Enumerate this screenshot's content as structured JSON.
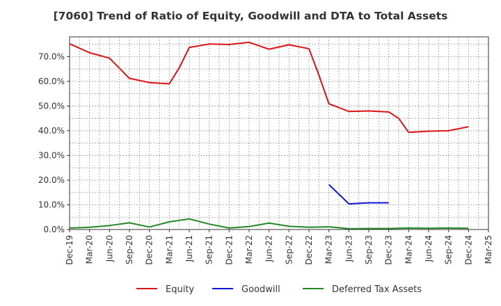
{
  "chart_data": {
    "type": "line",
    "title": "[7060]  Trend of Ratio of Equity, Goodwill and DTA to Total Assets",
    "xlabel": "",
    "ylabel": "",
    "x": [
      "Dec-19",
      "Jan-20",
      "Mar-20",
      "Apr-20",
      "Jun-20",
      "Jul-20",
      "Sep-20",
      "Oct-20",
      "Dec-20",
      "Jan-21",
      "Mar-21",
      "Apr-21",
      "Jun-21",
      "Jul-21",
      "Sep-21",
      "Oct-21",
      "Dec-21",
      "Jan-22",
      "Mar-22",
      "Apr-22",
      "Jun-22",
      "Jul-22",
      "Sep-22",
      "Oct-22",
      "Dec-22",
      "Jan-23",
      "Mar-23",
      "Apr-23",
      "Jun-23",
      "Jul-23",
      "Sep-23",
      "Oct-23",
      "Dec-23",
      "Jan-24",
      "Mar-24",
      "Apr-24",
      "Jun-24",
      "Jul-24",
      "Sep-24",
      "Oct-24",
      "Dec-24",
      "Jan-25",
      "Mar-25"
    ],
    "x_tick_labels": [
      "Dec-19",
      "Mar-20",
      "Jun-20",
      "Sep-20",
      "Dec-20",
      "Mar-21",
      "Jun-21",
      "Sep-21",
      "Dec-21",
      "Mar-22",
      "Jun-22",
      "Sep-22",
      "Dec-22",
      "Mar-23",
      "Jun-23",
      "Sep-23",
      "Dec-23",
      "Mar-24",
      "Jun-24",
      "Sep-24",
      "Dec-24",
      "Mar-25"
    ],
    "y_tick_labels": [
      "0.0%",
      "10.0%",
      "20.0%",
      "30.0%",
      "40.0%",
      "50.0%",
      "60.0%",
      "70.0%"
    ],
    "ylim": [
      0,
      78
    ],
    "grid": true,
    "legend_position": "bottom",
    "series": [
      {
        "name": "Equity",
        "color": "#dd1111",
        "points": [
          [
            "Dec-19",
            75.2
          ],
          [
            "Mar-20",
            71.6
          ],
          [
            "Jun-20",
            69.4
          ],
          [
            "Sep-20",
            61.2
          ],
          [
            "Dec-20",
            59.5
          ],
          [
            "Mar-21",
            59.0
          ],
          [
            "Apr-21",
            65.5
          ],
          [
            "Jun-21",
            73.7
          ],
          [
            "Sep-21",
            75.1
          ],
          [
            "Dec-21",
            74.9
          ],
          [
            "Mar-22",
            75.8
          ],
          [
            "Jun-22",
            73.0
          ],
          [
            "Sep-22",
            74.8
          ],
          [
            "Dec-22",
            73.2
          ],
          [
            "Jan-23",
            62.5
          ],
          [
            "Mar-23",
            50.9
          ],
          [
            "Jun-23",
            47.8
          ],
          [
            "Sep-23",
            48.0
          ],
          [
            "Dec-23",
            47.6
          ],
          [
            "Jan-24",
            45.0
          ],
          [
            "Mar-24",
            39.3
          ],
          [
            "Jun-24",
            39.8
          ],
          [
            "Sep-24",
            40.0
          ],
          [
            "Dec-24",
            41.6
          ]
        ]
      },
      {
        "name": "Goodwill",
        "color": "#1111dd",
        "points": [
          [
            "Mar-23",
            18.2
          ],
          [
            "Jun-23",
            10.4
          ],
          [
            "Sep-23",
            10.8
          ],
          [
            "Dec-23",
            10.8
          ]
        ]
      },
      {
        "name": "Deferred Tax Assets",
        "color": "#228822",
        "points": [
          [
            "Dec-19",
            0.6
          ],
          [
            "Mar-20",
            0.9
          ],
          [
            "Jun-20",
            1.6
          ],
          [
            "Sep-20",
            2.7
          ],
          [
            "Dec-20",
            1.0
          ],
          [
            "Mar-21",
            3.1
          ],
          [
            "Jun-21",
            4.3
          ],
          [
            "Sep-21",
            2.2
          ],
          [
            "Dec-21",
            0.6
          ],
          [
            "Mar-22",
            1.2
          ],
          [
            "Jun-22",
            2.6
          ],
          [
            "Sep-22",
            1.3
          ],
          [
            "Dec-22",
            0.9
          ],
          [
            "Mar-23",
            1.1
          ],
          [
            "Jun-23",
            0.3
          ],
          [
            "Sep-23",
            0.4
          ],
          [
            "Dec-23",
            0.4
          ],
          [
            "Mar-24",
            0.6
          ],
          [
            "Jun-24",
            0.5
          ],
          [
            "Sep-24",
            0.6
          ],
          [
            "Dec-24",
            0.5
          ]
        ]
      }
    ]
  }
}
